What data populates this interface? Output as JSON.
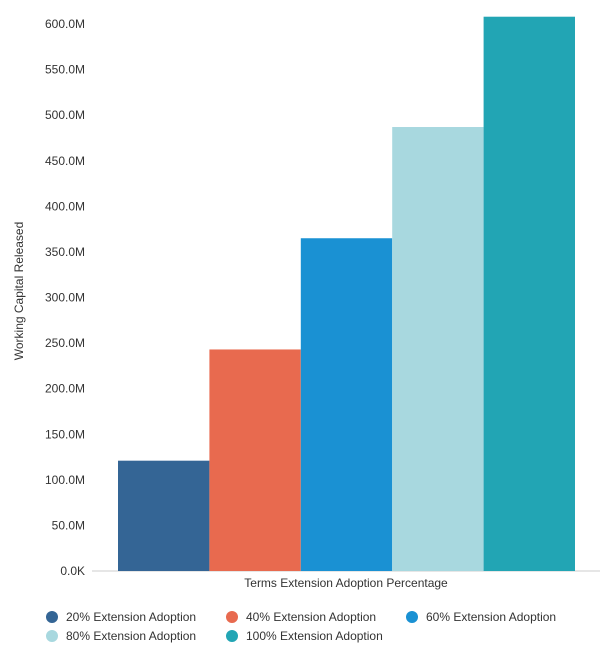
{
  "chart_data": {
    "type": "bar",
    "xlabel": "Terms Extension Adoption Percentage",
    "ylabel": "Working Capital Released",
    "ylim": [
      0,
      600
    ],
    "y_unit": "M",
    "y_ticks": [
      "0.0K",
      "50.0M",
      "100.0M",
      "150.0M",
      "200.0M",
      "250.0M",
      "300.0M",
      "350.0M",
      "400.0M",
      "450.0M",
      "500.0M",
      "550.0M",
      "600.0M"
    ],
    "grid": false,
    "legend_position": "bottom",
    "series": [
      {
        "name": "20% Extension Adoption",
        "value": 121,
        "color": "#346595"
      },
      {
        "name": "40% Extension Adoption",
        "value": 243,
        "color": "#E86A4F"
      },
      {
        "name": "60% Extension Adoption",
        "value": 365,
        "color": "#1A91D3"
      },
      {
        "name": "80% Extension Adoption",
        "value": 487,
        "color": "#A8D8DF"
      },
      {
        "name": "100% Extension Adoption",
        "value": 608,
        "color": "#22A5B4"
      }
    ]
  }
}
